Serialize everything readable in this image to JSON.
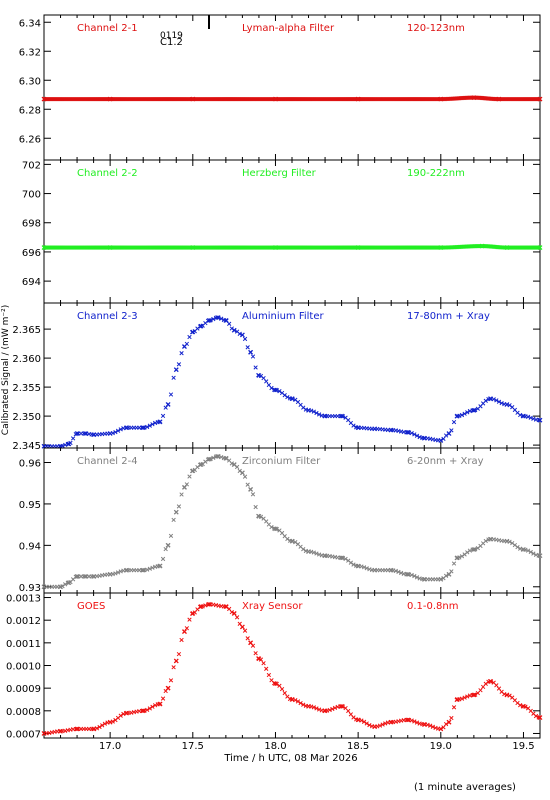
{
  "page": {
    "x_axis_label": "Time / h UTC, 08 Mar 2026",
    "y_axis_label": "Calibrated Signal / (mW m⁻²)",
    "footer_note": "(1 minute averages)"
  },
  "chart_data": [
    {
      "type": "scatter",
      "panel": "Channel 2-1",
      "title_left": "Channel 2-1",
      "title_mid": "Lyman-alpha Filter",
      "title_right": "120-123nm",
      "color": "#dd1111",
      "ylim": [
        6.245,
        6.345
      ],
      "yticks": [
        6.26,
        6.28,
        6.3,
        6.32,
        6.34
      ],
      "ytick_labels": [
        "6.26",
        "6.28",
        "6.30",
        "6.32",
        "6.34"
      ],
      "annotations": [
        "C1.2",
        "0119"
      ],
      "series": [
        {
          "x": [
            16.6,
            17.0,
            17.5,
            18.0,
            18.5,
            19.0,
            19.2,
            19.35,
            19.6
          ],
          "y": [
            6.287,
            6.287,
            6.287,
            6.287,
            6.287,
            6.287,
            6.288,
            6.287,
            6.287
          ]
        }
      ]
    },
    {
      "type": "scatter",
      "panel": "Channel 2-2",
      "title_left": "Channel 2-2",
      "title_mid": "Herzberg Filter",
      "title_right": "190-222nm",
      "color": "#22ee22",
      "ylim": [
        692.5,
        702.3
      ],
      "yticks": [
        694,
        696,
        698,
        700,
        702
      ],
      "ytick_labels": [
        "694",
        "696",
        "698",
        "700",
        "702"
      ],
      "series": [
        {
          "x": [
            16.6,
            17.0,
            17.5,
            18.0,
            18.5,
            19.0,
            19.25,
            19.4,
            19.6
          ],
          "y": [
            696.3,
            696.3,
            696.3,
            696.3,
            696.3,
            696.3,
            696.4,
            696.3,
            696.3
          ]
        }
      ]
    },
    {
      "type": "scatter",
      "panel": "Channel 2-3",
      "title_left": "Channel 2-3",
      "title_mid": "Aluminium Filter",
      "title_right": "17-80nm + Xray",
      "color": "#1122cc",
      "ylim": [
        2.3445,
        2.3695
      ],
      "yticks": [
        2.345,
        2.35,
        2.355,
        2.36,
        2.365
      ],
      "ytick_labels": [
        "2.345",
        "2.350",
        "2.355",
        "2.360",
        "2.365"
      ],
      "series": [
        {
          "x": [
            16.6,
            16.7,
            16.75,
            16.8,
            16.85,
            16.9,
            17.0,
            17.1,
            17.2,
            17.3,
            17.35,
            17.4,
            17.45,
            17.5,
            17.55,
            17.6,
            17.65,
            17.7,
            17.75,
            17.8,
            17.85,
            17.9,
            18.0,
            18.1,
            18.2,
            18.3,
            18.4,
            18.5,
            18.6,
            18.7,
            18.8,
            18.9,
            19.0,
            19.05,
            19.1,
            19.2,
            19.3,
            19.4,
            19.5,
            19.6
          ],
          "y": [
            2.3448,
            2.3448,
            2.3452,
            2.347,
            2.347,
            2.3468,
            2.347,
            2.348,
            2.348,
            2.349,
            2.352,
            2.358,
            2.362,
            2.3645,
            2.3655,
            2.3665,
            2.367,
            2.3665,
            2.3648,
            2.364,
            2.361,
            2.357,
            2.3545,
            2.353,
            2.351,
            2.35,
            2.35,
            2.348,
            2.3478,
            2.3476,
            2.3472,
            2.3462,
            2.3458,
            2.347,
            2.35,
            2.351,
            2.353,
            2.352,
            2.35,
            2.3493
          ]
        }
      ]
    },
    {
      "type": "scatter",
      "panel": "Channel 2-4",
      "title_left": "Channel 2-4",
      "title_mid": "Zirconium Filter",
      "title_right": "6-20nm + Xray",
      "color": "#808080",
      "ylim": [
        0.9285,
        0.9635
      ],
      "yticks": [
        0.93,
        0.94,
        0.95,
        0.96
      ],
      "ytick_labels": [
        "0.93",
        "0.94",
        "0.95",
        "0.96"
      ],
      "series": [
        {
          "x": [
            16.6,
            16.7,
            16.75,
            16.8,
            16.85,
            16.9,
            17.0,
            17.1,
            17.2,
            17.3,
            17.35,
            17.4,
            17.45,
            17.5,
            17.55,
            17.6,
            17.65,
            17.7,
            17.75,
            17.8,
            17.85,
            17.9,
            18.0,
            18.1,
            18.2,
            18.3,
            18.4,
            18.5,
            18.6,
            18.7,
            18.8,
            18.9,
            19.0,
            19.05,
            19.1,
            19.2,
            19.3,
            19.4,
            19.5,
            19.6
          ],
          "y": [
            0.93,
            0.93,
            0.931,
            0.9325,
            0.9325,
            0.9325,
            0.933,
            0.934,
            0.934,
            0.935,
            0.94,
            0.948,
            0.954,
            0.958,
            0.9595,
            0.9608,
            0.9615,
            0.961,
            0.9595,
            0.9575,
            0.9535,
            0.947,
            0.944,
            0.941,
            0.9385,
            0.9375,
            0.937,
            0.935,
            0.934,
            0.934,
            0.933,
            0.9318,
            0.9318,
            0.933,
            0.937,
            0.939,
            0.9415,
            0.941,
            0.939,
            0.9375
          ]
        }
      ]
    },
    {
      "type": "scatter",
      "panel": "GOES",
      "title_left": "GOES",
      "title_mid": "Xray Sensor",
      "title_right": "0.1-0.8nm",
      "color": "#ee1111",
      "ylim": [
        0.00068,
        0.00132
      ],
      "yticks": [
        0.0007,
        0.0008,
        0.0009,
        0.001,
        0.0011,
        0.0012,
        0.0013
      ],
      "ytick_labels": [
        "0.0007",
        "0.0008",
        "0.0009",
        "0.0010",
        "0.0011",
        "0.0012",
        "0.0013"
      ],
      "series": [
        {
          "x": [
            16.6,
            16.7,
            16.8,
            16.9,
            17.0,
            17.1,
            17.2,
            17.3,
            17.35,
            17.4,
            17.45,
            17.5,
            17.55,
            17.6,
            17.7,
            17.75,
            17.8,
            17.85,
            17.9,
            18.0,
            18.1,
            18.2,
            18.3,
            18.4,
            18.5,
            18.6,
            18.7,
            18.8,
            18.9,
            19.0,
            19.05,
            19.1,
            19.2,
            19.3,
            19.4,
            19.5,
            19.6
          ],
          "y": [
            0.0007,
            0.00071,
            0.00072,
            0.00072,
            0.00075,
            0.00079,
            0.0008,
            0.00083,
            0.0009,
            0.00102,
            0.00115,
            0.00123,
            0.00126,
            0.00127,
            0.00126,
            0.00123,
            0.00117,
            0.0011,
            0.00103,
            0.00092,
            0.00085,
            0.00082,
            0.0008,
            0.00082,
            0.00076,
            0.00073,
            0.00075,
            0.00076,
            0.00074,
            0.00072,
            0.00075,
            0.00085,
            0.00087,
            0.00093,
            0.00087,
            0.00082,
            0.00077
          ]
        }
      ]
    }
  ]
}
